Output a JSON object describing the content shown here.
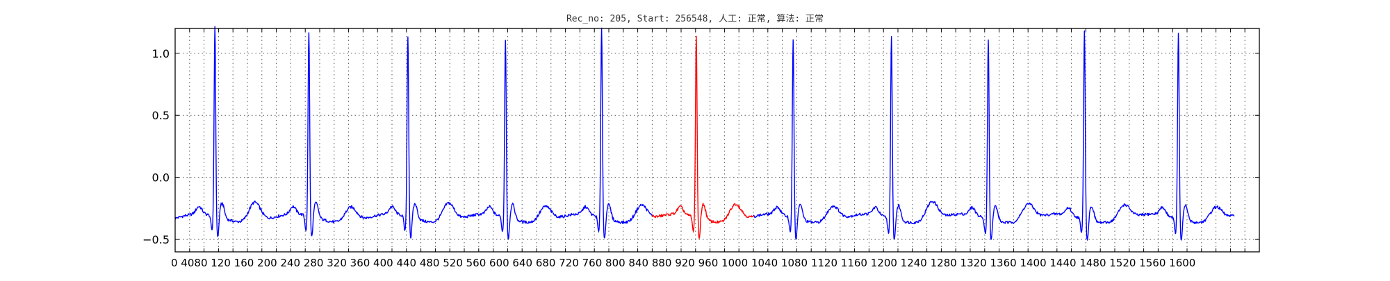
{
  "chart_data": {
    "type": "line",
    "title": "Rec_no: 205, Start: 256548, 人工: 正常, 算法: 正常",
    "xlabel": "",
    "ylabel": "",
    "xlim": [
      0,
      1500
    ],
    "ylim": [
      -0.6,
      1.2
    ],
    "grid": true,
    "grid_style": "dotted",
    "y_ticks": [
      {
        "value": 1.0,
        "label": "1.0"
      },
      {
        "value": 0.5,
        "label": "0.5"
      },
      {
        "value": 0.0,
        "label": "0.0"
      },
      {
        "value": -0.5,
        "label": "−0.5"
      }
    ],
    "x_ticks": [
      0,
      20,
      40,
      60,
      80,
      100,
      120,
      140,
      160,
      180,
      200,
      220,
      240,
      260,
      280,
      300,
      320,
      340,
      360,
      380,
      400,
      420,
      440,
      460,
      480,
      500,
      520,
      540,
      560,
      580,
      600,
      620,
      640,
      660,
      680,
      700,
      720,
      740,
      760,
      780,
      800,
      820,
      840,
      860,
      880,
      900,
      920,
      940,
      960,
      980,
      1000,
      1020,
      1040,
      1060,
      1080,
      1100,
      1120,
      1140,
      1160,
      1180,
      1200,
      1220,
      1240,
      1260,
      1280,
      1300,
      1320,
      1340,
      1360,
      1380,
      1400,
      1420,
      1440,
      1460,
      1480,
      1500
    ],
    "x_tick_labels_text": "0 4080 120 160 200 240 280 320 360 400 440 480 520 560 600 640 680 720 760 800 840 880 920 960 1000 1040 1080 1120 1160 1200 1240 1280 1320 1360 1400 1440 1480 1520 1560 1600",
    "vertical_gridlines_x": [
      20,
      40,
      60,
      80,
      100,
      120,
      140,
      160,
      180,
      200,
      220,
      240,
      260,
      280,
      300,
      320,
      340,
      360,
      380,
      400,
      420,
      440,
      460,
      480,
      500,
      520,
      540,
      560,
      580,
      600,
      620,
      640,
      660,
      680,
      700,
      720,
      740,
      760,
      780,
      800,
      820,
      840,
      860,
      880,
      900,
      920,
      940,
      960,
      980,
      1000,
      1020,
      1040,
      1060,
      1080,
      1100,
      1120,
      1140,
      1160,
      1180,
      1200,
      1220,
      1240,
      1260,
      1280,
      1300,
      1320,
      1340,
      1360,
      1380,
      1400,
      1420,
      1440,
      1460,
      1480
    ],
    "baseline": -0.33,
    "beats": [
      {
        "x": 55,
        "peak": 1.15,
        "series": "normal"
      },
      {
        "x": 185,
        "peak": 1.11,
        "series": "normal"
      },
      {
        "x": 322,
        "peak": 1.08,
        "series": "normal"
      },
      {
        "x": 457,
        "peak": 1.06,
        "series": "normal"
      },
      {
        "x": 590,
        "peak": 1.16,
        "series": "normal"
      },
      {
        "x": 721,
        "peak": 1.09,
        "series": "highlight"
      },
      {
        "x": 855,
        "peak": 1.06,
        "series": "normal"
      },
      {
        "x": 991,
        "peak": 1.09,
        "series": "normal"
      },
      {
        "x": 1125,
        "peak": 1.08,
        "series": "normal"
      },
      {
        "x": 1258,
        "peak": 1.15,
        "series": "normal"
      },
      {
        "x": 1388,
        "peak": 1.12,
        "series": "normal"
      }
    ],
    "t_waves": [
      {
        "x": 110,
        "h": 0.16
      },
      {
        "x": 243,
        "h": 0.12
      },
      {
        "x": 378,
        "h": 0.15
      },
      {
        "x": 512,
        "h": 0.12
      },
      {
        "x": 645,
        "h": 0.13
      },
      {
        "x": 775,
        "h": 0.14
      },
      {
        "x": 910,
        "h": 0.12
      },
      {
        "x": 1047,
        "h": 0.15
      },
      {
        "x": 1180,
        "h": 0.13
      },
      {
        "x": 1313,
        "h": 0.12
      },
      {
        "x": 1440,
        "h": 0.11
      }
    ],
    "series": [
      {
        "name": "",
        "color": "#0000ff",
        "x_range": [
          0,
          1465
        ]
      },
      {
        "name": "",
        "color": "#ff0000",
        "x_range": [
          660,
          800
        ]
      }
    ],
    "x_end": 1465
  }
}
